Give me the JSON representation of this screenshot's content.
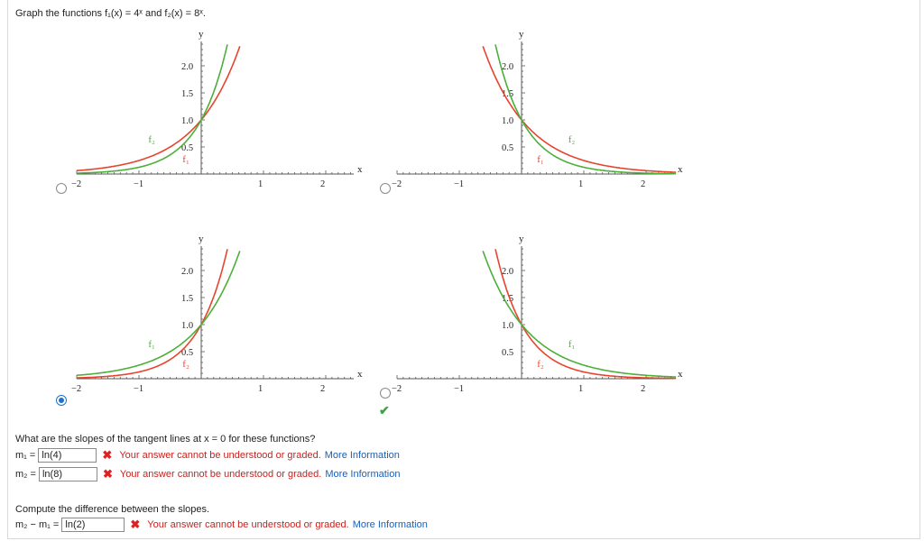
{
  "prompt": {
    "lead": "Graph the functions ",
    "f1": "f₁(x) = 4ˣ",
    "conj": " and ",
    "f2": "f₂(x) = 8ˣ",
    "end": "."
  },
  "graph_axis": {
    "y_label": "y",
    "x_label": "x",
    "y_ticks": [
      "0.5",
      "1.0",
      "1.5",
      "2.0"
    ],
    "x_ticks": [
      "−2",
      "−1",
      "1",
      "2"
    ],
    "f1_label": "f₁",
    "f2_label": "f₂"
  },
  "colors": {
    "red": "#e8432d",
    "green": "#4caf3a",
    "accent": "#1a73c9"
  },
  "options": [
    {
      "id": "A",
      "bases": {
        "red": 4,
        "green": 8
      },
      "selected": false
    },
    {
      "id": "B",
      "bases": {
        "red": 0.25,
        "green": 0.125
      },
      "selected": false
    },
    {
      "id": "C",
      "bases": {
        "red": 8,
        "green": 4
      },
      "selected": true
    },
    {
      "id": "D",
      "bases": {
        "red": 0.125,
        "green": 0.25
      },
      "selected": false
    }
  ],
  "slope_question": "What are the slopes of the tangent lines at x = 0 for these functions?",
  "answers": {
    "m1_label": "m₁ = ",
    "m1_value": "ln(4)",
    "m2_label": "m₂ = ",
    "m2_value": "ln(8)",
    "diff_question": "Compute the difference between the slopes.",
    "diff_label": "m₂ − m₁ = ",
    "diff_value": "ln(2)"
  },
  "feedback": {
    "error_text": "Your answer cannot be understood or graded.",
    "more_link": "More Information"
  }
}
